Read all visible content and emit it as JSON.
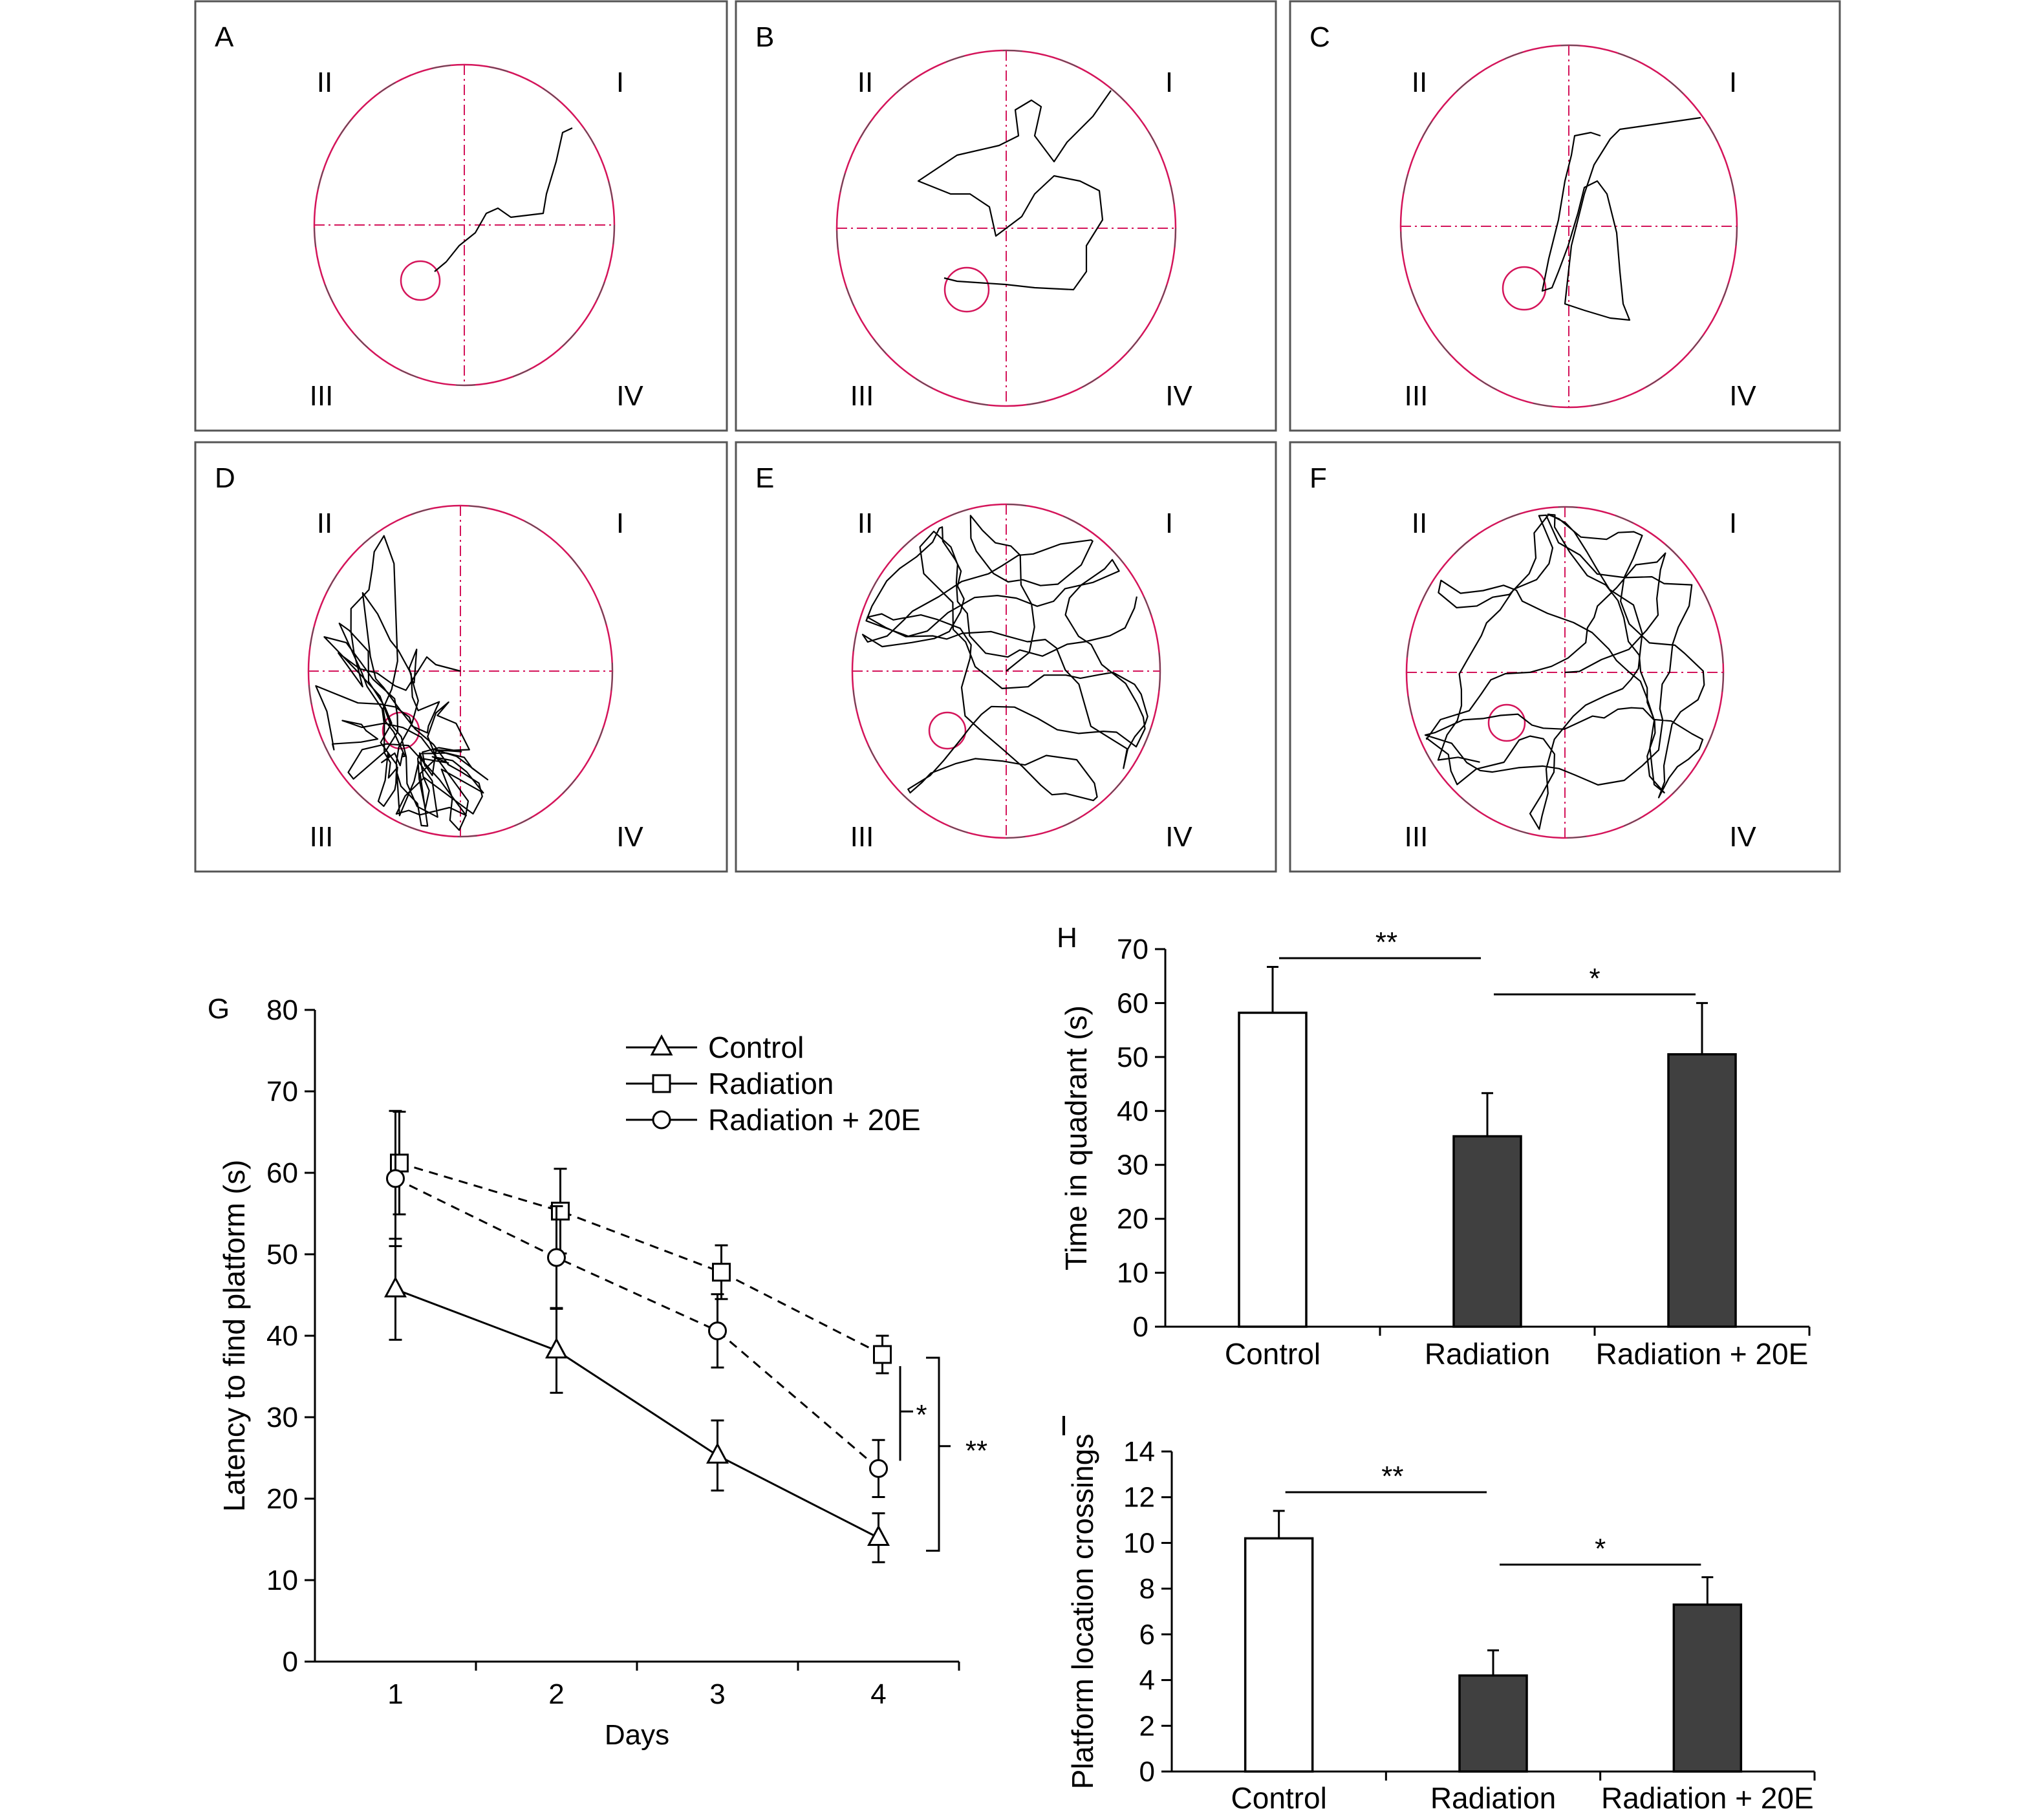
{
  "panels": [
    {
      "letter": "A"
    },
    {
      "letter": "B"
    },
    {
      "letter": "C"
    },
    {
      "letter": "D"
    },
    {
      "letter": "E"
    },
    {
      "letter": "F"
    }
  ],
  "quadrant_labels": {
    "q1": "I",
    "q2": "II",
    "q3": "III",
    "q4": "IV"
  },
  "colors": {
    "pool_outline": "#d4145a",
    "axis": "#000000",
    "bar_fill_dark": "#404040",
    "bar_fill_light": "#ffffff"
  },
  "chart_data": [
    {
      "panel": "G",
      "type": "line",
      "xlabel": "Days",
      "ylabel": "Latency to find platform (s)",
      "x": [
        1,
        2,
        3,
        4
      ],
      "xlim": [
        0.5,
        4.5
      ],
      "ylim": [
        0,
        80
      ],
      "yticks": [
        0,
        10,
        20,
        30,
        40,
        50,
        60,
        70,
        80
      ],
      "legend_position": "top-right",
      "series": [
        {
          "name": "Control",
          "marker": "triangle",
          "linestyle": "solid",
          "values": [
            45.7,
            38.2,
            25.3,
            15.2
          ],
          "errors": [
            6.2,
            5.2,
            4.3,
            3.0
          ]
        },
        {
          "name": "Radiation",
          "marker": "square",
          "linestyle": "dashed",
          "values": [
            61.2,
            55.3,
            47.8,
            37.7
          ],
          "errors": [
            6.3,
            5.2,
            3.3,
            2.3
          ]
        },
        {
          "name": "Radiation + 20E",
          "marker": "circle",
          "linestyle": "dashed",
          "values": [
            59.3,
            49.6,
            40.6,
            23.7
          ],
          "errors": [
            8.3,
            6.3,
            4.5,
            3.5
          ]
        }
      ],
      "annotations": [
        "*",
        "**"
      ]
    },
    {
      "panel": "H",
      "type": "bar",
      "ylabel": "Time in quadrant (s)",
      "categories": [
        "Control",
        "Radiation",
        "Radiation + 20E"
      ],
      "values": [
        58.2,
        35.3,
        50.5
      ],
      "errors": [
        8.5,
        8.0,
        9.5
      ],
      "fills": [
        "light",
        "dark",
        "dark"
      ],
      "ylim": [
        0,
        70
      ],
      "yticks": [
        0,
        10,
        20,
        30,
        40,
        50,
        60,
        70
      ],
      "annotations": [
        "**",
        "*"
      ]
    },
    {
      "panel": "I",
      "type": "bar",
      "ylabel": "Platform location crossings",
      "categories": [
        "Control",
        "Radiation",
        "Radiation + 20E"
      ],
      "values": [
        10.2,
        4.2,
        7.3
      ],
      "errors": [
        1.2,
        1.1,
        1.2
      ],
      "fills": [
        "light",
        "dark",
        "dark"
      ],
      "ylim": [
        0,
        14
      ],
      "yticks": [
        0,
        2,
        4,
        6,
        8,
        10,
        12,
        14
      ],
      "annotations": [
        "**",
        "*"
      ]
    }
  ]
}
